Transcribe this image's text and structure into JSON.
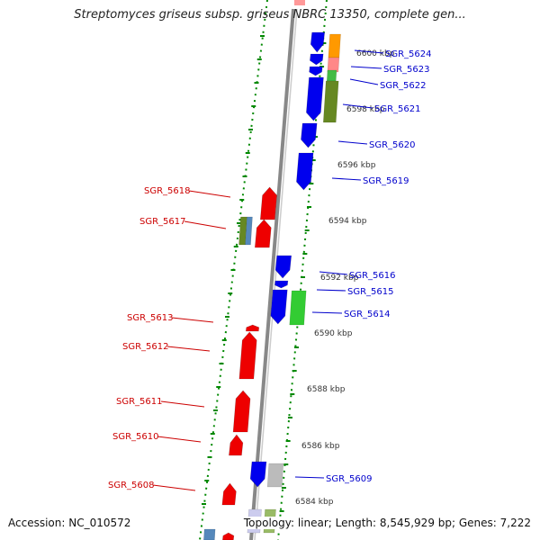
{
  "header": {
    "title": "Streptomyces griseus subsp. griseus NBRC 13350, complete gen..."
  },
  "footer": {
    "accession": "Accession: NC_010572",
    "stats": "Topology: linear; Length: 8,545,929 bp; Genes: 7,222"
  },
  "colors": {
    "forward_strand": "#ee0000",
    "reverse_strand": "#0000ee",
    "backbone": "#888888",
    "tick": "#008800",
    "label_forward": "#cc0000",
    "label_reverse": "#0000cc"
  },
  "scale_labels": [
    "6600 kbp",
    "6598 kbp",
    "6596 kbp",
    "6594 kbp",
    "6592 kbp",
    "6590 kbp",
    "6588 kbp",
    "6586 kbp",
    "6584 kbp"
  ],
  "reverse_genes": [
    {
      "name": "SGR_5624"
    },
    {
      "name": "SGR_5623"
    },
    {
      "name": "SGR_5622"
    },
    {
      "name": "SGR_5621"
    },
    {
      "name": "SGR_5620"
    },
    {
      "name": "SGR_5619"
    },
    {
      "name": "SGR_5616"
    },
    {
      "name": "SGR_5615"
    },
    {
      "name": "SGR_5614"
    },
    {
      "name": "SGR_5609"
    }
  ],
  "forward_genes": [
    {
      "name": "SGR_5618"
    },
    {
      "name": "SGR_5617"
    },
    {
      "name": "SGR_5613"
    },
    {
      "name": "SGR_5612"
    },
    {
      "name": "SGR_5611"
    },
    {
      "name": "SGR_5610"
    },
    {
      "name": "SGR_5608"
    }
  ]
}
